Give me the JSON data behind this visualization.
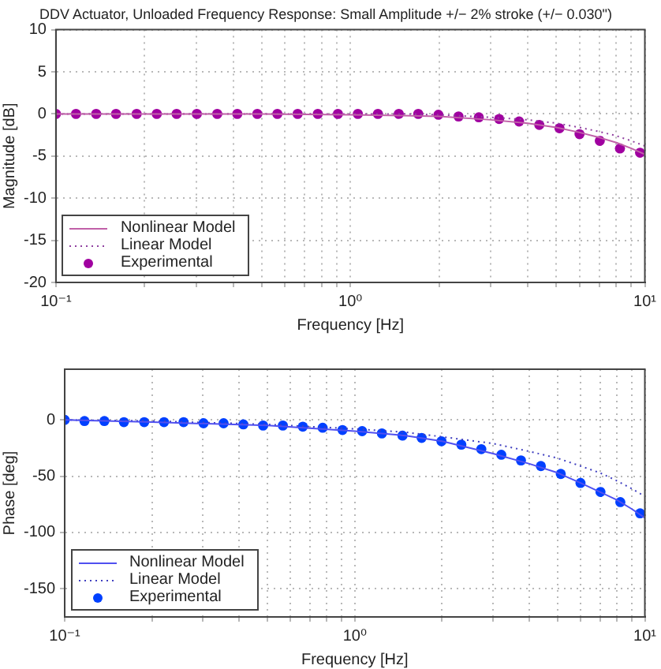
{
  "chart_data": [
    {
      "type": "line",
      "title": "DDV Actuator, Unloaded Frequency Response: Small Amplitude +/− 2% stroke (+/− 0.030\")",
      "xlabel": "Frequency [Hz]",
      "ylabel": "Magnitude [dB]",
      "log": "x",
      "grid": true,
      "legend": "bottom left",
      "xlim": [
        0.1,
        10
      ],
      "xticks": [
        {
          "value": 0.1,
          "label": "10⁻¹"
        },
        {
          "value": 0.2,
          "label": null
        },
        {
          "value": 0.3,
          "label": null
        },
        {
          "value": 0.4,
          "label": null
        },
        {
          "value": 0.5,
          "label": null
        },
        {
          "value": 0.6,
          "label": null
        },
        {
          "value": 0.7,
          "label": null
        },
        {
          "value": 0.8,
          "label": null
        },
        {
          "value": 0.9,
          "label": null
        },
        {
          "value": 1,
          "label": "10⁰"
        },
        {
          "value": 2,
          "label": null
        },
        {
          "value": 3,
          "label": null
        },
        {
          "value": 4,
          "label": null
        },
        {
          "value": 5,
          "label": null
        },
        {
          "value": 6,
          "label": null
        },
        {
          "value": 7,
          "label": null
        },
        {
          "value": 8,
          "label": null
        },
        {
          "value": 9,
          "label": null
        },
        {
          "value": 10,
          "label": "10¹"
        }
      ],
      "ylim": [
        -20,
        10
      ],
      "yticks": [
        -20,
        -15,
        -10,
        -5,
        0,
        5,
        10
      ],
      "series": [
        {
          "name": "Nonlinear Model",
          "type": "line",
          "line_style": "solid",
          "marker": "none",
          "color": "#c060a8",
          "x": [
            0.1,
            0.2,
            0.5,
            1,
            1.5,
            2,
            3,
            4,
            5,
            6,
            7,
            8,
            9,
            10
          ],
          "values": [
            0,
            0,
            0,
            -0.1,
            -0.2,
            -0.3,
            -0.7,
            -1.1,
            -1.6,
            -2.2,
            -2.8,
            -3.4,
            -4.1,
            -4.8
          ]
        },
        {
          "name": "Linear Model",
          "type": "line",
          "line_style": "dotted",
          "marker": "none",
          "color": "#9040a0",
          "x": [
            0.1,
            0.2,
            0.5,
            1,
            1.5,
            2,
            3,
            4,
            5,
            6,
            7,
            8,
            9,
            10
          ],
          "values": [
            0,
            0,
            0,
            0,
            0,
            -0.1,
            -0.4,
            -0.7,
            -1.1,
            -1.6,
            -2.1,
            -2.6,
            -3.2,
            -3.8
          ]
        },
        {
          "name": "Experimental",
          "type": "scatter",
          "marker": "circle",
          "color": "#a000a0",
          "x": [
            0.1,
            0.117,
            0.137,
            0.16,
            0.188,
            0.22,
            0.257,
            0.301,
            0.353,
            0.413,
            0.483,
            0.565,
            0.662,
            0.775,
            0.907,
            1.06,
            1.24,
            1.46,
            1.7,
            1.99,
            2.33,
            2.73,
            3.2,
            3.74,
            4.38,
            5.13,
            6.0,
            7.03,
            8.23,
            9.63
          ],
          "values": [
            0,
            0,
            0,
            0,
            0,
            0,
            0,
            0,
            0,
            0,
            0,
            0,
            0,
            0,
            0,
            0,
            0,
            0,
            0,
            -0.1,
            -0.3,
            -0.4,
            -0.6,
            -0.9,
            -1.3,
            -1.7,
            -2.4,
            -3.2,
            -4.1,
            -4.6
          ]
        }
      ]
    },
    {
      "type": "line",
      "xlabel": "Frequency [Hz]",
      "ylabel": "Phase [deg]",
      "log": "x",
      "grid": true,
      "legend": "bottom left",
      "xlim": [
        0.1,
        10
      ],
      "xticks": [
        {
          "value": 0.1,
          "label": "10⁻¹"
        },
        {
          "value": 0.2,
          "label": null
        },
        {
          "value": 0.3,
          "label": null
        },
        {
          "value": 0.4,
          "label": null
        },
        {
          "value": 0.5,
          "label": null
        },
        {
          "value": 0.6,
          "label": null
        },
        {
          "value": 0.7,
          "label": null
        },
        {
          "value": 0.8,
          "label": null
        },
        {
          "value": 0.9,
          "label": null
        },
        {
          "value": 1,
          "label": "10⁰"
        },
        {
          "value": 2,
          "label": null
        },
        {
          "value": 3,
          "label": null
        },
        {
          "value": 4,
          "label": null
        },
        {
          "value": 5,
          "label": null
        },
        {
          "value": 6,
          "label": null
        },
        {
          "value": 7,
          "label": null
        },
        {
          "value": 8,
          "label": null
        },
        {
          "value": 9,
          "label": null
        },
        {
          "value": 10,
          "label": "10¹"
        }
      ],
      "ylim": [
        -175,
        45
      ],
      "yticks": [
        -150,
        -100,
        -50,
        0
      ],
      "series": [
        {
          "name": "Nonlinear Model",
          "type": "line",
          "line_style": "solid",
          "marker": "none",
          "color": "#5050f0",
          "x": [
            0.1,
            0.2,
            0.5,
            1,
            1.5,
            2,
            3,
            4,
            5,
            6,
            7,
            8,
            9,
            10
          ],
          "values": [
            0,
            -2,
            -5,
            -10,
            -14,
            -19,
            -30,
            -39,
            -47,
            -56,
            -64,
            -71,
            -79,
            -87
          ]
        },
        {
          "name": "Linear Model",
          "type": "line",
          "line_style": "dotted",
          "marker": "none",
          "color": "#4040c0",
          "x": [
            0.1,
            0.2,
            0.5,
            1,
            1.5,
            2,
            3,
            4,
            5,
            6,
            7,
            8,
            9,
            10
          ],
          "values": [
            0,
            -1,
            -4,
            -8,
            -11,
            -15,
            -21,
            -28,
            -34,
            -41,
            -47,
            -54,
            -61,
            -68
          ]
        },
        {
          "name": "Experimental",
          "type": "scatter",
          "marker": "circle",
          "color": "#0040ff",
          "x": [
            0.1,
            0.117,
            0.137,
            0.16,
            0.188,
            0.22,
            0.257,
            0.301,
            0.353,
            0.413,
            0.483,
            0.565,
            0.662,
            0.775,
            0.907,
            1.06,
            1.24,
            1.46,
            1.7,
            1.99,
            2.33,
            2.73,
            3.2,
            3.74,
            4.38,
            5.13,
            6.0,
            7.03,
            8.23,
            9.63
          ],
          "values": [
            0,
            -1,
            -1,
            -2,
            -2,
            -2,
            -2,
            -3,
            -3,
            -4,
            -5,
            -5,
            -6,
            -7,
            -9,
            -10,
            -12,
            -14,
            -16,
            -19,
            -22,
            -26,
            -31,
            -36,
            -41,
            -48,
            -56,
            -64,
            -73,
            -83
          ]
        }
      ]
    }
  ]
}
